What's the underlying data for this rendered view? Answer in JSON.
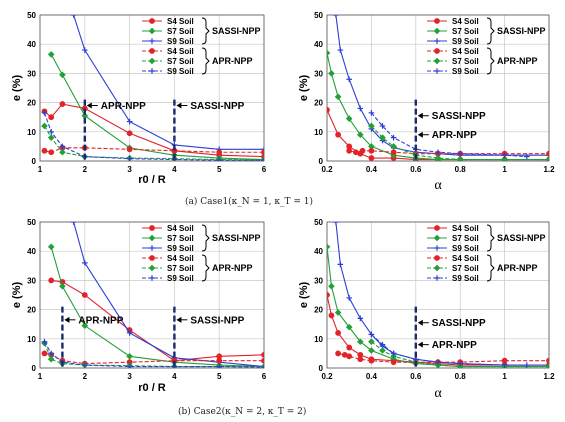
{
  "captions": [
    "(a) Case1(κ_N = 1, κ_T = 1)",
    "(b) Case2(κ_N = 2, κ_T = 2)"
  ],
  "group_labels": {
    "sassi": "SASSI-NPP",
    "apr": "APR-NPP"
  },
  "colors": {
    "S4": "#e0242a",
    "S7": "#23a037",
    "S9": "#2b3fd6",
    "ref": "#1a2a6b"
  },
  "chart_data": [
    {
      "type": "line",
      "xlabel": "r0 / R",
      "ylabel": "e (%)",
      "xlim": [
        1,
        6
      ],
      "ylim": [
        0,
        50
      ],
      "xticks": [
        1,
        2,
        3,
        4,
        5,
        6
      ],
      "xtick_labels": [
        "1",
        "2",
        "3",
        "4",
        "5",
        "6"
      ],
      "yticks": [
        0,
        10,
        20,
        30,
        40,
        50
      ],
      "ytick_labels": [
        "0",
        "10",
        "20",
        "30",
        "40",
        "50"
      ],
      "legend": "top-right",
      "series": [
        {
          "name": "S4 Soil",
          "group": "SASSI-NPP",
          "soil": "S4",
          "dashed": false,
          "marker": "circle",
          "x": [
            1.1,
            1.25,
            1.5,
            2,
            3,
            4,
            5,
            6
          ],
          "y": [
            17,
            15,
            19.5,
            18,
            9.5,
            3.5,
            2,
            1.5
          ]
        },
        {
          "name": "S7 Soil",
          "group": "SASSI-NPP",
          "soil": "S7",
          "dashed": false,
          "marker": "diamond",
          "x": [
            1.25,
            1.5,
            2,
            3,
            4,
            5,
            6
          ],
          "y": [
            36.5,
            29.5,
            15.5,
            4.5,
            2,
            1,
            0.5
          ]
        },
        {
          "name": "S9 Soil",
          "group": "SASSI-NPP",
          "soil": "S9",
          "dashed": false,
          "marker": "plus",
          "x": [
            1.75,
            2,
            3,
            4,
            5,
            6
          ],
          "y": [
            50,
            38,
            13.5,
            5.5,
            4,
            4
          ]
        },
        {
          "name": "S4 Soil",
          "group": "APR-NPP",
          "soil": "S4",
          "dashed": true,
          "marker": "circle",
          "x": [
            1.1,
            1.25,
            1.5,
            2,
            3,
            4,
            5,
            6
          ],
          "y": [
            3.5,
            3,
            4.5,
            4.5,
            4,
            3.5,
            3,
            3
          ]
        },
        {
          "name": "S7 Soil",
          "group": "APR-NPP",
          "soil": "S7",
          "dashed": true,
          "marker": "diamond",
          "x": [
            1.1,
            1.25,
            1.5,
            2,
            3,
            4,
            5,
            6
          ],
          "y": [
            12,
            8,
            3,
            1.5,
            1,
            0.8,
            0.5,
            0.3
          ]
        },
        {
          "name": "S9 Soil",
          "group": "APR-NPP",
          "soil": "S9",
          "dashed": true,
          "marker": "plus",
          "x": [
            1.1,
            1.25,
            1.5,
            2,
            3,
            4,
            5,
            6
          ],
          "y": [
            16.5,
            10,
            5,
            1.5,
            0.8,
            0.5,
            0.3,
            0.3
          ]
        }
      ],
      "ref_lines": [
        {
          "x": 2,
          "label": "APR-NPP",
          "label_y": 19
        },
        {
          "x": 4,
          "label": "SASSI-NPP",
          "label_y": 19
        }
      ]
    },
    {
      "type": "line",
      "xlabel": "α",
      "ylabel": "e (%)",
      "xlim": [
        0.2,
        1.2
      ],
      "ylim": [
        0,
        50
      ],
      "xticks": [
        0.2,
        0.4,
        0.6,
        0.8,
        1.0,
        1.2
      ],
      "xtick_labels": [
        "0.2",
        "0.4",
        "0.6",
        "0.8",
        "1",
        "1.2"
      ],
      "yticks": [
        0,
        10,
        20,
        30,
        40,
        50
      ],
      "ytick_labels": [
        "0",
        "10",
        "20",
        "30",
        "40",
        "50"
      ],
      "legend": "top-right",
      "series": [
        {
          "name": "S4 Soil",
          "group": "SASSI-NPP",
          "soil": "S4",
          "dashed": false,
          "marker": "circle",
          "x": [
            0.2,
            0.25,
            0.3,
            0.35,
            0.4,
            0.5,
            0.6,
            0.7,
            0.8,
            1.0,
            1.2
          ],
          "y": [
            17.5,
            9,
            5,
            2.5,
            1,
            1,
            0.5,
            0.5,
            0.5,
            0.5,
            0.5
          ]
        },
        {
          "name": "S7 Soil",
          "group": "SASSI-NPP",
          "soil": "S7",
          "dashed": false,
          "marker": "diamond",
          "x": [
            0.2,
            0.22,
            0.25,
            0.3,
            0.35,
            0.4,
            0.5,
            0.6,
            0.7,
            0.8,
            1.0,
            1.2
          ],
          "y": [
            37,
            30,
            22,
            14.5,
            9,
            5,
            2,
            1,
            0.5,
            0.5,
            0.5,
            0.5
          ]
        },
        {
          "name": "S9 Soil",
          "group": "SASSI-NPP",
          "soil": "S9",
          "dashed": false,
          "marker": "plus",
          "x": [
            0.24,
            0.26,
            0.3,
            0.35,
            0.4,
            0.45,
            0.5,
            0.6,
            0.7,
            0.8,
            1.0,
            1.2
          ],
          "y": [
            50,
            38,
            28,
            18,
            11,
            7,
            4.5,
            3,
            2.5,
            2,
            2,
            2
          ]
        },
        {
          "name": "S4 Soil",
          "group": "APR-NPP",
          "soil": "S4",
          "dashed": true,
          "marker": "circle",
          "x": [
            0.3,
            0.33,
            0.36,
            0.4,
            0.5,
            0.6,
            0.7,
            0.8,
            1.0,
            1.2
          ],
          "y": [
            3.5,
            3,
            3.5,
            3.5,
            3,
            2.5,
            2.5,
            2.5,
            2.5,
            2.5
          ]
        },
        {
          "name": "S7 Soil",
          "group": "APR-NPP",
          "soil": "S7",
          "dashed": true,
          "marker": "diamond",
          "x": [
            0.4,
            0.45,
            0.5,
            0.6,
            0.7,
            0.8,
            1.0,
            1.2
          ],
          "y": [
            12,
            8,
            5,
            2,
            1,
            0.5,
            0.5,
            0.5
          ]
        },
        {
          "name": "S9 Soil",
          "group": "APR-NPP",
          "soil": "S9",
          "dashed": true,
          "marker": "plus",
          "x": [
            0.4,
            0.45,
            0.5,
            0.6,
            0.7,
            0.8,
            1.0,
            1.1
          ],
          "y": [
            16.5,
            12,
            8,
            4,
            3,
            2.5,
            2,
            1.5
          ]
        }
      ],
      "ref_lines": [
        {
          "x": 0.6,
          "label": "SASSI-NPP",
          "label_y": 15.5
        },
        {
          "x": 0.6,
          "label": "APR-NPP",
          "label_y": 9
        }
      ],
      "ref_line_single": true
    },
    {
      "type": "line",
      "xlabel": "r0 / R",
      "ylabel": "e (%)",
      "xlim": [
        1,
        6
      ],
      "ylim": [
        0,
        50
      ],
      "xticks": [
        1,
        2,
        3,
        4,
        5,
        6
      ],
      "xtick_labels": [
        "1",
        "2",
        "3",
        "4",
        "5",
        "6"
      ],
      "yticks": [
        0,
        10,
        20,
        30,
        40,
        50
      ],
      "ytick_labels": [
        "0",
        "10",
        "20",
        "30",
        "40",
        "50"
      ],
      "legend": "top-right",
      "series": [
        {
          "name": "S4 Soil",
          "group": "SASSI-NPP",
          "soil": "S4",
          "dashed": false,
          "marker": "circle",
          "x": [
            1.25,
            1.5,
            2,
            3,
            4,
            5,
            6
          ],
          "y": [
            30,
            29.5,
            25,
            13,
            2.5,
            4,
            4.5
          ]
        },
        {
          "name": "S7 Soil",
          "group": "SASSI-NPP",
          "soil": "S7",
          "dashed": false,
          "marker": "diamond",
          "x": [
            1.25,
            1.5,
            2,
            3,
            4,
            5,
            6
          ],
          "y": [
            41.5,
            28,
            14.5,
            4,
            2,
            1,
            0.5
          ]
        },
        {
          "name": "S9 Soil",
          "group": "SASSI-NPP",
          "soil": "S9",
          "dashed": false,
          "marker": "plus",
          "x": [
            1.75,
            2,
            3,
            4,
            5,
            6
          ],
          "y": [
            50,
            36,
            12,
            3.5,
            2,
            0.5
          ]
        },
        {
          "name": "S4 Soil",
          "group": "APR-NPP",
          "soil": "S4",
          "dashed": true,
          "marker": "circle",
          "x": [
            1.1,
            1.25,
            1.5,
            2,
            3,
            4,
            5,
            6
          ],
          "y": [
            5,
            4.5,
            2.5,
            1.5,
            2,
            2.5,
            2.5,
            2.5
          ]
        },
        {
          "name": "S7 Soil",
          "group": "APR-NPP",
          "soil": "S7",
          "dashed": true,
          "marker": "diamond",
          "x": [
            1.1,
            1.25,
            1.5,
            2,
            3,
            4,
            5,
            6
          ],
          "y": [
            8.5,
            3,
            1.5,
            1,
            0.8,
            0.5,
            0.5,
            0.5
          ]
        },
        {
          "name": "S9 Soil",
          "group": "APR-NPP",
          "soil": "S9",
          "dashed": true,
          "marker": "plus",
          "x": [
            1.1,
            1.25,
            1.5,
            2,
            3,
            4,
            5,
            6
          ],
          "y": [
            9,
            5,
            2,
            1,
            0.5,
            0.5,
            0.5,
            0.3
          ]
        }
      ],
      "ref_lines": [
        {
          "x": 1.5,
          "label": "APR-NPP",
          "label_y": 16.5
        },
        {
          "x": 4,
          "label": "SASSI-NPP",
          "label_y": 16.5
        }
      ]
    },
    {
      "type": "line",
      "xlabel": "α",
      "ylabel": "e (%)",
      "xlim": [
        0.2,
        1.2
      ],
      "ylim": [
        0,
        50
      ],
      "xticks": [
        0.2,
        0.4,
        0.6,
        0.8,
        1.0,
        1.2
      ],
      "xtick_labels": [
        "0.2",
        "0.4",
        "0.6",
        "0.8",
        "1",
        "1.2"
      ],
      "yticks": [
        0,
        10,
        20,
        30,
        40,
        50
      ],
      "ytick_labels": [
        "0",
        "10",
        "20",
        "30",
        "40",
        "50"
      ],
      "legend": "top-right",
      "series": [
        {
          "name": "S4 Soil",
          "group": "SASSI-NPP",
          "soil": "S4",
          "dashed": false,
          "marker": "circle",
          "x": [
            0.2,
            0.22,
            0.25,
            0.3,
            0.35,
            0.4,
            0.5,
            0.6,
            0.7,
            0.8,
            1.0,
            1.2
          ],
          "y": [
            25,
            18,
            12,
            7,
            4.5,
            3,
            2.5,
            2,
            1.5,
            1,
            1,
            1
          ]
        },
        {
          "name": "S7 Soil",
          "group": "SASSI-NPP",
          "soil": "S7",
          "dashed": false,
          "marker": "diamond",
          "x": [
            0.2,
            0.22,
            0.25,
            0.3,
            0.35,
            0.4,
            0.5,
            0.6,
            0.7,
            0.8,
            1.0,
            1.2
          ],
          "y": [
            41.5,
            28,
            19,
            14,
            9,
            6,
            3,
            1.5,
            1,
            0.5,
            0.5,
            0.5
          ]
        },
        {
          "name": "S9 Soil",
          "group": "SASSI-NPP",
          "soil": "S9",
          "dashed": false,
          "marker": "plus",
          "x": [
            0.24,
            0.26,
            0.3,
            0.35,
            0.4,
            0.45,
            0.5,
            0.6,
            0.7,
            0.8,
            1.0,
            1.2
          ],
          "y": [
            50,
            35.5,
            24,
            17,
            11.5,
            7.5,
            5,
            3,
            2,
            1.5,
            1,
            1
          ]
        },
        {
          "name": "S4 Soil",
          "group": "APR-NPP",
          "soil": "S4",
          "dashed": true,
          "marker": "circle",
          "x": [
            0.25,
            0.28,
            0.3,
            0.35,
            0.4,
            0.5,
            0.6,
            0.7,
            0.8,
            1.0,
            1.2
          ],
          "y": [
            5,
            4.5,
            4,
            3,
            2.5,
            2,
            2,
            2,
            2,
            2.5,
            2.5
          ]
        },
        {
          "name": "S7 Soil",
          "group": "APR-NPP",
          "soil": "S7",
          "dashed": true,
          "marker": "diamond",
          "x": [
            0.4,
            0.45,
            0.5,
            0.6,
            0.7,
            0.8,
            1.0,
            1.2
          ],
          "y": [
            9,
            6,
            4,
            2,
            1,
            0.5,
            0.5,
            0.5
          ]
        },
        {
          "name": "S9 Soil",
          "group": "APR-NPP",
          "soil": "S9",
          "dashed": true,
          "marker": "plus",
          "x": [
            0.4,
            0.45,
            0.5,
            0.6,
            0.7,
            0.8,
            1.0,
            1.1
          ],
          "y": [
            11.5,
            8,
            5,
            3,
            2,
            1.5,
            1,
            1
          ]
        }
      ],
      "ref_lines": [
        {
          "x": 0.6,
          "label": "SASSI-NPP",
          "label_y": 15.5
        },
        {
          "x": 0.6,
          "label": "APR-NPP",
          "label_y": 8
        }
      ],
      "ref_line_single": true
    }
  ]
}
